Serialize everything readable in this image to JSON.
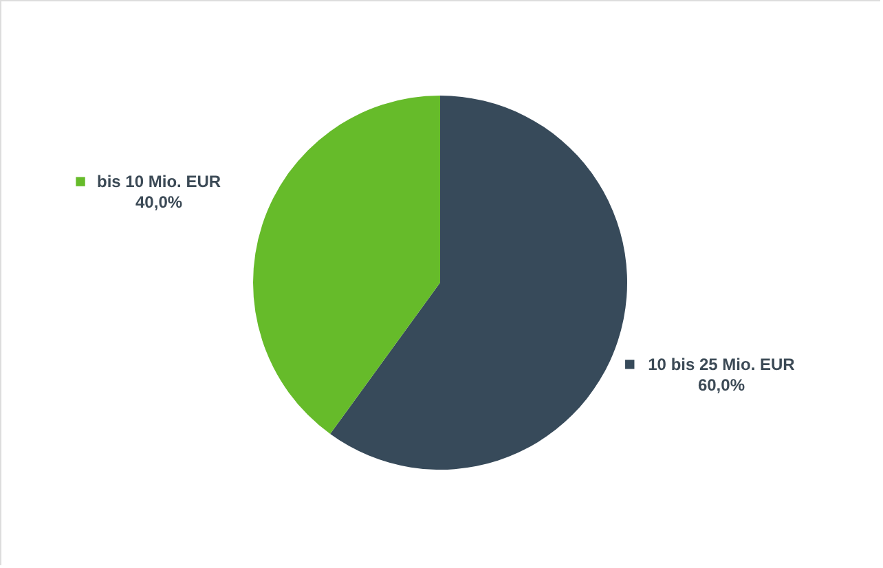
{
  "chart_data": {
    "type": "pie",
    "categories": [
      "10 bis 25 Mio. EUR",
      "bis 10 Mio. EUR"
    ],
    "values": [
      60,
      40
    ],
    "colors": [
      "#374a5a",
      "#66bb2a"
    ],
    "value_labels": [
      "60,0%",
      "40,0%"
    ],
    "legend": "left"
  }
}
